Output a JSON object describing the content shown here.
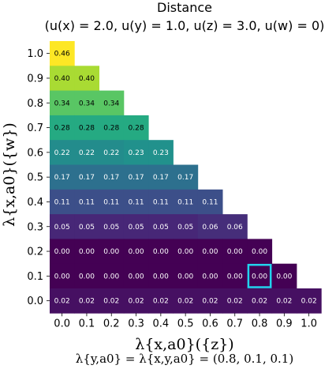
{
  "chart_data": {
    "type": "heatmap",
    "title": "Distance",
    "subtitle": "(u(x) = 2.0, u(y) = 1.0, u(z) = 3.0, u(w) = 0)",
    "xlabel": "λ{x,a0}({z})",
    "ylabel": "λ{x,a0}({w})",
    "footer": "λ{y,a0} = λ{x,y,a0} = (0.8, 0.1, 0.1)",
    "x_ticks": [
      "0.0",
      "0.1",
      "0.2",
      "0.3",
      "0.4",
      "0.5",
      "0.6",
      "0.7",
      "0.8",
      "0.9",
      "1.0"
    ],
    "y_ticks": [
      "1.0",
      "0.9",
      "0.8",
      "0.7",
      "0.6",
      "0.5",
      "0.4",
      "0.3",
      "0.2",
      "0.1",
      "0.0"
    ],
    "value_range": [
      0,
      0.46
    ],
    "rows": [
      {
        "y": "1.0",
        "cells": [
          "0.46"
        ]
      },
      {
        "y": "0.9",
        "cells": [
          "0.40",
          "0.40"
        ]
      },
      {
        "y": "0.8",
        "cells": [
          "0.34",
          "0.34",
          "0.34"
        ]
      },
      {
        "y": "0.7",
        "cells": [
          "0.28",
          "0.28",
          "0.28",
          "0.28"
        ]
      },
      {
        "y": "0.6",
        "cells": [
          "0.22",
          "0.22",
          "0.22",
          "0.23",
          "0.23"
        ]
      },
      {
        "y": "0.5",
        "cells": [
          "0.17",
          "0.17",
          "0.17",
          "0.17",
          "0.17",
          "0.17"
        ]
      },
      {
        "y": "0.4",
        "cells": [
          "0.11",
          "0.11",
          "0.11",
          "0.11",
          "0.11",
          "0.11",
          "0.11"
        ]
      },
      {
        "y": "0.3",
        "cells": [
          "0.05",
          "0.05",
          "0.05",
          "0.05",
          "0.05",
          "0.05",
          "0.06",
          "0.06"
        ]
      },
      {
        "y": "0.2",
        "cells": [
          "0.00",
          "0.00",
          "0.00",
          "0.00",
          "0.00",
          "0.00",
          "0.00",
          "0.00",
          "0.00"
        ]
      },
      {
        "y": "0.1",
        "cells": [
          "0.00",
          "0.00",
          "0.00",
          "0.00",
          "0.00",
          "0.00",
          "0.00",
          "0.00",
          "0.00",
          "0.00"
        ]
      },
      {
        "y": "0.0",
        "cells": [
          "0.02",
          "0.02",
          "0.02",
          "0.02",
          "0.02",
          "0.02",
          "0.02",
          "0.02",
          "0.02",
          "0.02",
          "0.02"
        ]
      }
    ],
    "highlight": {
      "x": "0.8",
      "y": "0.1"
    },
    "highlight_color": "#22d3ee",
    "colormap": "viridis"
  }
}
